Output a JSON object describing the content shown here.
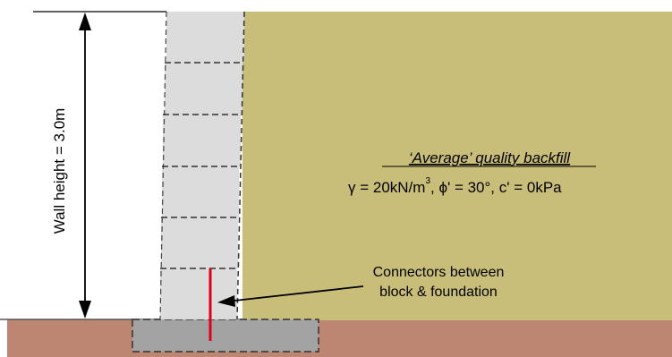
{
  "wall_height_label": "Wall height = 3.0m",
  "backfill": {
    "title": "‘Average’ quality backfill",
    "gamma_symbol": "γ",
    "gamma_text": " = 20kN/m",
    "gamma_exp": "3",
    "phi_text": ", ϕ' = 30°, c' = 0kPa"
  },
  "connector_label": {
    "line1": "Connectors between",
    "line2": "block & foundation"
  },
  "colors": {
    "backfill": "#c9bd7a",
    "ground": "#bd8672",
    "blocks": "#dcdcdc",
    "foundation": "#a3a3a3",
    "connector": "#e0001b"
  }
}
